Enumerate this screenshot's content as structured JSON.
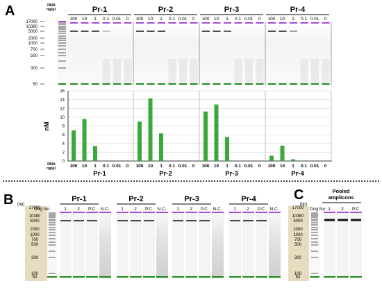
{
  "panels": {
    "a": "A",
    "b": "B",
    "c": "C"
  },
  "panel_a": {
    "dna_label": "DNA",
    "conc_unit": "ng/µl",
    "groups": [
      "Pr-1",
      "Pr-2",
      "Pr-3",
      "Pr-4"
    ],
    "lane_labels": [
      "100",
      "10",
      "1",
      "0.1",
      "0.01",
      "0"
    ],
    "ladder_ticks": [
      "17000",
      "10380",
      "5000",
      "2000",
      "1000",
      "700",
      "500",
      "300",
      "50"
    ]
  },
  "panel_b": {
    "unit": "(bp)",
    "ladder_label": "Dog No.",
    "groups": [
      "Pr-1",
      "Pr-2",
      "Pr-3",
      "Pr-4"
    ],
    "lane_labels": [
      "1",
      "2",
      "P.C",
      "N.C."
    ],
    "ladder_ticks": [
      "17000",
      "10380",
      "5000",
      "2000",
      "1000",
      "700",
      "500",
      "300",
      "100",
      "50"
    ]
  },
  "panel_c": {
    "unit": "(bp)",
    "title_line1": "Pooled",
    "title_line2": "amplicons",
    "ladder_label": "Dog No.",
    "lane_labels": [
      "1",
      "2",
      "P.C"
    ],
    "ladder_ticks": [
      "17000",
      "10380",
      "5000",
      "2000",
      "1000",
      "700",
      "500",
      "300",
      "100",
      "50"
    ]
  },
  "chart_data": {
    "type": "bar",
    "title": "",
    "xlabel": "DNA ng/µl",
    "ylabel": "nM",
    "ylim": [
      0,
      16
    ],
    "yticks": [
      "0",
      "2",
      "4",
      "6",
      "8",
      "10",
      "12",
      "14",
      "16"
    ],
    "categories": [
      "100",
      "10",
      "1",
      "0.1",
      "0.01",
      "0"
    ],
    "grid": true,
    "series": [
      {
        "name": "Pr-1",
        "values": [
          7.0,
          9.6,
          3.4,
          0,
          0,
          0
        ]
      },
      {
        "name": "Pr-2",
        "values": [
          9.0,
          14.3,
          6.3,
          0,
          0,
          0
        ]
      },
      {
        "name": "Pr-3",
        "values": [
          11.3,
          12.9,
          5.5,
          0,
          0,
          0
        ]
      },
      {
        "name": "Pr-4",
        "values": [
          1.2,
          3.5,
          0.4,
          0,
          0,
          0
        ]
      }
    ],
    "bar_color": "#3aa83a"
  }
}
